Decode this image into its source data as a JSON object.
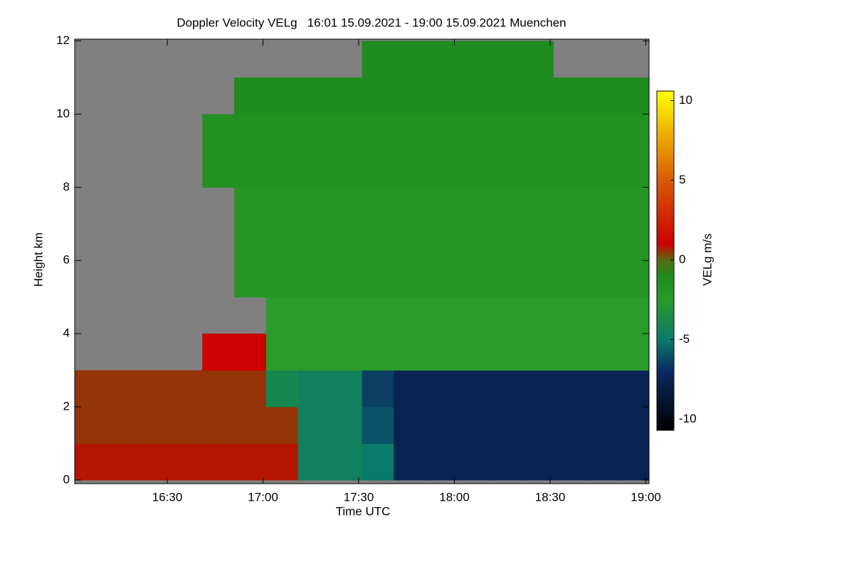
{
  "chart_data": {
    "type": "heatmap",
    "title": "Doppler Velocity VELg   16:01 15.09.2021 - 19:00 15.09.2021 Muenchen",
    "x_label": "Time UTC",
    "y_label": "Height km",
    "colorbar_label": "VELg m/s",
    "x": [
      1,
      11,
      21,
      31,
      41,
      51,
      61,
      71,
      81,
      91,
      101,
      111,
      121,
      131,
      141,
      151,
      161,
      171,
      181
    ],
    "y": [
      0,
      1,
      2,
      3,
      4,
      5,
      6,
      7,
      8,
      9,
      10,
      11,
      12
    ],
    "z": [
      [
        0.8,
        0.8,
        0.8,
        0.8,
        0.8,
        0.8,
        0.8,
        -4.5,
        -4.5,
        -5,
        -7.5,
        -7.5,
        -7.5,
        -7.5,
        -7.5,
        -7.5,
        -7.5,
        -7.5
      ],
      [
        0.5,
        0.5,
        0.5,
        0.5,
        0.5,
        0.5,
        0.5,
        -4.5,
        -4.5,
        -6,
        -7.5,
        -7.5,
        -7.5,
        -7.5,
        -7.5,
        -7.5,
        -7.5,
        -7.5
      ],
      [
        0.5,
        0.5,
        0.5,
        0.5,
        0.5,
        0.5,
        -4,
        -4.5,
        -4.5,
        -6.5,
        -7.5,
        -7.5,
        -7.5,
        -7.5,
        -7.5,
        -7.5,
        -7.5,
        -7.5
      ],
      [
        null,
        null,
        null,
        null,
        1,
        1,
        -2.5,
        -2.5,
        -2.5,
        -2.5,
        -2.5,
        -2.5,
        -2.5,
        -2.5,
        -2.5,
        -2.5,
        -2.5,
        -2.5
      ],
      [
        null,
        null,
        null,
        null,
        null,
        null,
        -2.5,
        -2.5,
        -2.5,
        -2.5,
        -2.5,
        -2.5,
        -2.5,
        -2.5,
        -2.5,
        -2.5,
        -2.5,
        -2.5
      ],
      [
        null,
        null,
        null,
        null,
        null,
        -2,
        -2,
        -2,
        -2,
        -2,
        -2,
        -2,
        -2,
        -2,
        -2,
        -2,
        -2,
        -2
      ],
      [
        null,
        null,
        null,
        null,
        null,
        -2,
        -2,
        -2,
        -2,
        -2,
        -2,
        -2,
        -2,
        -2,
        -2,
        -2,
        -2,
        -2
      ],
      [
        null,
        null,
        null,
        null,
        null,
        -2,
        -2,
        -2,
        -2,
        -2,
        -2,
        -2,
        -2,
        -2,
        -2,
        -2,
        -2,
        -2
      ],
      [
        null,
        null,
        null,
        null,
        -1.5,
        -1.5,
        -1.5,
        -1.5,
        -1.5,
        -1.5,
        -1.5,
        -1.5,
        -1.5,
        -1.5,
        -1.5,
        -1.5,
        -1.5,
        -1.5
      ],
      [
        null,
        null,
        null,
        null,
        -1.5,
        -1.5,
        -1.5,
        -1.5,
        -1.5,
        -1.5,
        -1.5,
        -1.5,
        -1.5,
        -1.5,
        -1.5,
        -1.5,
        -1.5,
        -1.5
      ],
      [
        null,
        null,
        null,
        null,
        null,
        -1,
        -1,
        -1,
        -1,
        -1,
        -1,
        -1,
        -1,
        -1,
        -1,
        -1,
        -1,
        -1
      ],
      [
        null,
        null,
        null,
        null,
        null,
        null,
        null,
        null,
        null,
        -1,
        -1,
        -1,
        -1,
        -1,
        -1,
        null,
        null,
        null
      ]
    ],
    "xlim": [
      1,
      181
    ],
    "ylim": [
      -0.1,
      12.05
    ],
    "xticks": [
      {
        "value": 30,
        "label": "16:30"
      },
      {
        "value": 60,
        "label": "17:00"
      },
      {
        "value": 90,
        "label": "17:30"
      },
      {
        "value": 120,
        "label": "18:00"
      },
      {
        "value": 150,
        "label": "18:30"
      },
      {
        "value": 180,
        "label": "19:00"
      }
    ],
    "yticks": [
      0,
      2,
      4,
      6,
      8,
      10,
      12
    ],
    "clim": [
      -10.7,
      10.6
    ],
    "cticks": [
      -10,
      -5,
      0,
      5,
      10
    ],
    "nodata_color": "#808080",
    "colormap": [
      [
        -10.7,
        "#000000"
      ],
      [
        -7,
        "#0a2a60"
      ],
      [
        -5,
        "#0a7a6a"
      ],
      [
        -2.5,
        "#2a9a2a"
      ],
      [
        -1,
        "#1e8c1e"
      ],
      [
        0,
        "#5a6a10"
      ],
      [
        1,
        "#cc0000"
      ],
      [
        5,
        "#d85a00"
      ],
      [
        10.6,
        "#ffff00"
      ]
    ]
  }
}
